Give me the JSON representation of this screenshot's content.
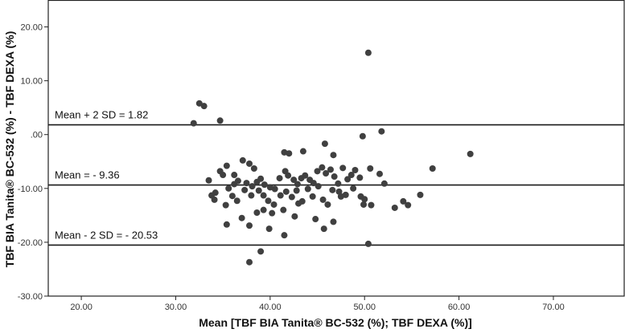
{
  "chart_data": {
    "type": "scatter",
    "title": "",
    "xlabel": "Mean [TBF BIA Tanita® BC-532 (%); TBF DEXA (%)]",
    "ylabel": "TBF BIA Tanita® BC-532 (%) - TBF DEXA (%)",
    "xlim": [
      16.5,
      77.5
    ],
    "ylim": [
      -30,
      25
    ],
    "x_ticks": [
      20,
      30,
      40,
      50,
      60,
      70
    ],
    "x_tick_labels": [
      "20.00",
      "30.00",
      "40.00",
      "50.00",
      "60.00",
      "70.00"
    ],
    "y_ticks": [
      20,
      10,
      0,
      -10,
      -20,
      -30
    ],
    "y_tick_labels": [
      "20.00",
      "10.00",
      ".00",
      "-10.00",
      "-20.00",
      "-30.00"
    ],
    "grid": false,
    "reference_lines": [
      {
        "value": 1.82,
        "label": "Mean + 2 SD = 1.82"
      },
      {
        "value": -9.36,
        "label": "Mean = - 9.36"
      },
      {
        "value": -20.53,
        "label": "Mean - 2 SD = - 20.53"
      }
    ],
    "marker_color": "#404040",
    "points": [
      [
        32.5,
        5.8
      ],
      [
        33.0,
        5.3
      ],
      [
        34.7,
        2.6
      ],
      [
        31.9,
        2.1
      ],
      [
        50.4,
        15.2
      ],
      [
        61.2,
        -3.6
      ],
      [
        57.2,
        -6.3
      ],
      [
        51.8,
        0.6
      ],
      [
        49.8,
        -0.3
      ],
      [
        45.8,
        -1.7
      ],
      [
        46.7,
        -3.8
      ],
      [
        43.5,
        -3.1
      ],
      [
        41.5,
        -3.3
      ],
      [
        42.0,
        -3.5
      ],
      [
        37.1,
        -4.8
      ],
      [
        37.8,
        -5.4
      ],
      [
        38.3,
        -6.3
      ],
      [
        35.4,
        -5.8
      ],
      [
        34.7,
        -6.8
      ],
      [
        35.0,
        -7.5
      ],
      [
        33.5,
        -8.5
      ],
      [
        36.2,
        -7.5
      ],
      [
        36.6,
        -8.6
      ],
      [
        37.5,
        -9.0
      ],
      [
        38.1,
        -9.6
      ],
      [
        38.6,
        -8.8
      ],
      [
        39.0,
        -8.2
      ],
      [
        39.4,
        -9.3
      ],
      [
        40.0,
        -9.8
      ],
      [
        40.5,
        -10.1
      ],
      [
        41.0,
        -8.1
      ],
      [
        41.6,
        -6.8
      ],
      [
        41.9,
        -7.6
      ],
      [
        42.5,
        -8.4
      ],
      [
        42.9,
        -9.2
      ],
      [
        43.3,
        -8.1
      ],
      [
        43.7,
        -7.6
      ],
      [
        44.2,
        -8.4
      ],
      [
        44.6,
        -9.0
      ],
      [
        45.0,
        -6.8
      ],
      [
        45.5,
        -6.1
      ],
      [
        45.9,
        -7.2
      ],
      [
        46.4,
        -6.5
      ],
      [
        46.8,
        -7.8
      ],
      [
        47.2,
        -9.1
      ],
      [
        47.7,
        -6.2
      ],
      [
        48.2,
        -8.3
      ],
      [
        48.6,
        -7.5
      ],
      [
        49.0,
        -6.6
      ],
      [
        49.5,
        -8.0
      ],
      [
        50.6,
        -6.3
      ],
      [
        51.6,
        -7.3
      ],
      [
        52.1,
        -9.1
      ],
      [
        34.2,
        -10.8
      ],
      [
        35.6,
        -10.0
      ],
      [
        36.0,
        -11.4
      ],
      [
        36.5,
        -12.3
      ],
      [
        37.3,
        -10.3
      ],
      [
        38.0,
        -11.3
      ],
      [
        38.8,
        -10.4
      ],
      [
        39.3,
        -11.3
      ],
      [
        39.8,
        -12.3
      ],
      [
        40.4,
        -13.0
      ],
      [
        41.1,
        -11.3
      ],
      [
        41.7,
        -10.6
      ],
      [
        42.3,
        -11.6
      ],
      [
        42.8,
        -10.4
      ],
      [
        43.4,
        -12.4
      ],
      [
        44.0,
        -10.1
      ],
      [
        44.5,
        -11.5
      ],
      [
        45.1,
        -9.6
      ],
      [
        45.6,
        -12.1
      ],
      [
        46.1,
        -13.0
      ],
      [
        46.6,
        -10.3
      ],
      [
        47.3,
        -10.6
      ],
      [
        48.0,
        -11.2
      ],
      [
        48.8,
        -10.0
      ],
      [
        49.6,
        -11.5
      ],
      [
        50.0,
        -12.0
      ],
      [
        50.7,
        -13.1
      ],
      [
        49.9,
        -13.0
      ],
      [
        53.2,
        -13.6
      ],
      [
        54.1,
        -12.4
      ],
      [
        55.9,
        -11.2
      ],
      [
        54.6,
        -13.1
      ],
      [
        34.1,
        -12.1
      ],
      [
        35.3,
        -13.1
      ],
      [
        37.0,
        -15.5
      ],
      [
        38.6,
        -14.5
      ],
      [
        40.2,
        -14.6
      ],
      [
        41.4,
        -14.0
      ],
      [
        42.6,
        -15.2
      ],
      [
        44.8,
        -15.7
      ],
      [
        46.7,
        -16.2
      ],
      [
        39.3,
        -14.0
      ],
      [
        35.4,
        -16.7
      ],
      [
        37.8,
        -16.9
      ],
      [
        39.9,
        -17.5
      ],
      [
        41.5,
        -18.7
      ],
      [
        45.7,
        -17.5
      ],
      [
        50.4,
        -20.3
      ],
      [
        39.0,
        -21.7
      ],
      [
        37.8,
        -23.7
      ],
      [
        33.8,
        -11.3
      ],
      [
        36.2,
        -9.2
      ],
      [
        43.0,
        -12.8
      ],
      [
        47.5,
        -11.5
      ]
    ]
  }
}
